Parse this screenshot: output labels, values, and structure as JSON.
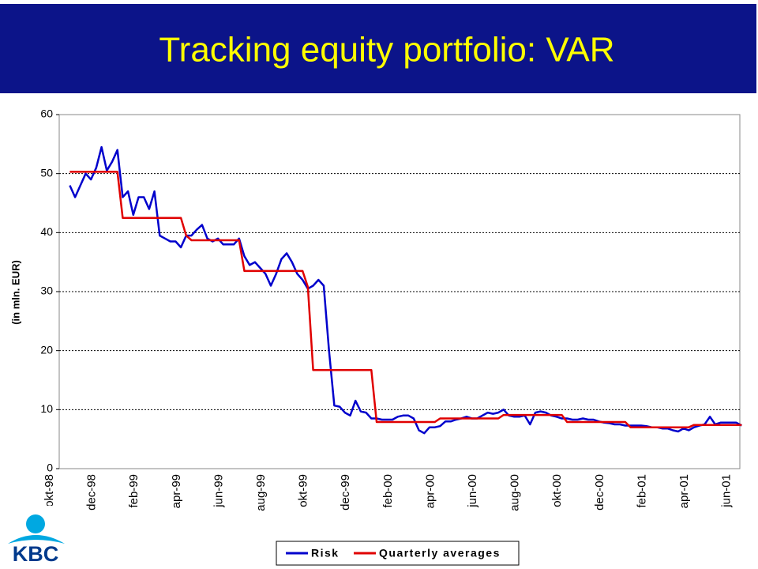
{
  "logo": "KBC",
  "chart_data": {
    "type": "line",
    "title": "Tracking equity portfolio: VAR",
    "y_label": "(in mln. EUR)",
    "categories": [
      "okt-98",
      null,
      null,
      null,
      null,
      null,
      null,
      null,
      "dec-98",
      null,
      null,
      null,
      null,
      null,
      null,
      null,
      "feb-99",
      null,
      null,
      null,
      null,
      null,
      null,
      null,
      "apr-99",
      null,
      null,
      null,
      null,
      null,
      null,
      null,
      "jun-99",
      null,
      null,
      null,
      null,
      null,
      null,
      null,
      "aug-99",
      null,
      null,
      null,
      null,
      null,
      null,
      null,
      "okt-99",
      null,
      null,
      null,
      null,
      null,
      null,
      null,
      "dec-99",
      null,
      null,
      null,
      null,
      null,
      null,
      null,
      "feb-00",
      null,
      null,
      null,
      null,
      null,
      null,
      null,
      "apr-00",
      null,
      null,
      null,
      null,
      null,
      null,
      null,
      "jun-00",
      null,
      null,
      null,
      null,
      null,
      null,
      null,
      "aug-00",
      null,
      null,
      null,
      null,
      null,
      null,
      null,
      "okt-00",
      null,
      null,
      null,
      null,
      null,
      null,
      null,
      "dec-00",
      null,
      null,
      null,
      null,
      null,
      null,
      null,
      "feb-01",
      null,
      null,
      null,
      null,
      null,
      null,
      null,
      "apr-01",
      null,
      null,
      null,
      null,
      null,
      null,
      null,
      "jun-01",
      null
    ],
    "series": [
      {
        "name": "Risk",
        "color": "#0000cc",
        "values": [
          null,
          null,
          48,
          46,
          48,
          50,
          49,
          51,
          54.5,
          50.5,
          52,
          54,
          46,
          47,
          43,
          46,
          46,
          44,
          47,
          39.5,
          39,
          38.5,
          38.5,
          37.5,
          39.5,
          39.5,
          40.5,
          41.3,
          39,
          38.5,
          39,
          38,
          38,
          38,
          39,
          36,
          34.5,
          35,
          34,
          33,
          31,
          33,
          35.5,
          36.5,
          35,
          33,
          32,
          30.5,
          31,
          32,
          31,
          20,
          10.7,
          10.5,
          9.5,
          9,
          11.5,
          9.7,
          9.5,
          8.5,
          8.5,
          8.3,
          8.3,
          8.3,
          8.8,
          9,
          9,
          8.5,
          6.5,
          6,
          7,
          7,
          7.2,
          8,
          8,
          8.3,
          8.5,
          8.8,
          8.5,
          8.5,
          9,
          9.5,
          9.3,
          9.5,
          10,
          9,
          8.8,
          8.8,
          9,
          7.5,
          9.5,
          9.7,
          9.5,
          9,
          8.8,
          8.5,
          8.5,
          8.3,
          8.3,
          8.5,
          8.3,
          8.3,
          8,
          7.8,
          7.7,
          7.5,
          7.5,
          7.3,
          7.3,
          7.3,
          7.3,
          7.2,
          7,
          7,
          6.8,
          6.8,
          6.5,
          6.3,
          6.8,
          6.5,
          7,
          7.3,
          7.5,
          8.8,
          7.5,
          7.8,
          7.8,
          7.8,
          7.8,
          7.3
        ]
      },
      {
        "name": "Quarterly averages",
        "color": "#e00000",
        "values": [
          null,
          null,
          50.3,
          50.3,
          50.3,
          50.3,
          50.3,
          50.3,
          50.3,
          50.3,
          50.3,
          50.3,
          42.5,
          42.5,
          42.5,
          42.5,
          42.5,
          42.5,
          42.5,
          42.5,
          42.5,
          42.5,
          42.5,
          42.5,
          39.5,
          38.7,
          38.7,
          38.7,
          38.7,
          38.7,
          38.7,
          38.7,
          38.7,
          38.7,
          38.7,
          33.5,
          33.5,
          33.5,
          33.5,
          33.5,
          33.5,
          33.5,
          33.5,
          33.5,
          33.5,
          33.5,
          33.5,
          30.8,
          16.7,
          16.7,
          16.7,
          16.7,
          16.7,
          16.7,
          16.7,
          16.7,
          16.7,
          16.7,
          16.7,
          16.7,
          7.9,
          7.9,
          7.9,
          7.9,
          7.9,
          7.9,
          7.9,
          7.9,
          7.9,
          7.9,
          7.9,
          7.9,
          8.5,
          8.5,
          8.5,
          8.5,
          8.5,
          8.5,
          8.5,
          8.5,
          8.5,
          8.5,
          8.5,
          8.5,
          9.1,
          9.1,
          9.1,
          9.1,
          9.1,
          9.1,
          9.1,
          9.1,
          9.1,
          9.1,
          9.1,
          9.1,
          7.9,
          7.9,
          7.9,
          7.9,
          7.9,
          7.9,
          7.9,
          7.9,
          7.9,
          7.9,
          7.9,
          7.9,
          7,
          7,
          7,
          7,
          7,
          7,
          7,
          7,
          7,
          7,
          7,
          7,
          7.4,
          7.4,
          7.4,
          7.4,
          7.4,
          7.4,
          7.4,
          7.4,
          7.4,
          7.4
        ]
      }
    ],
    "ylim": [
      0,
      60
    ],
    "yticks": [
      0,
      10,
      20,
      30,
      40,
      50,
      60
    ],
    "grid": true,
    "legend": "bottom"
  }
}
